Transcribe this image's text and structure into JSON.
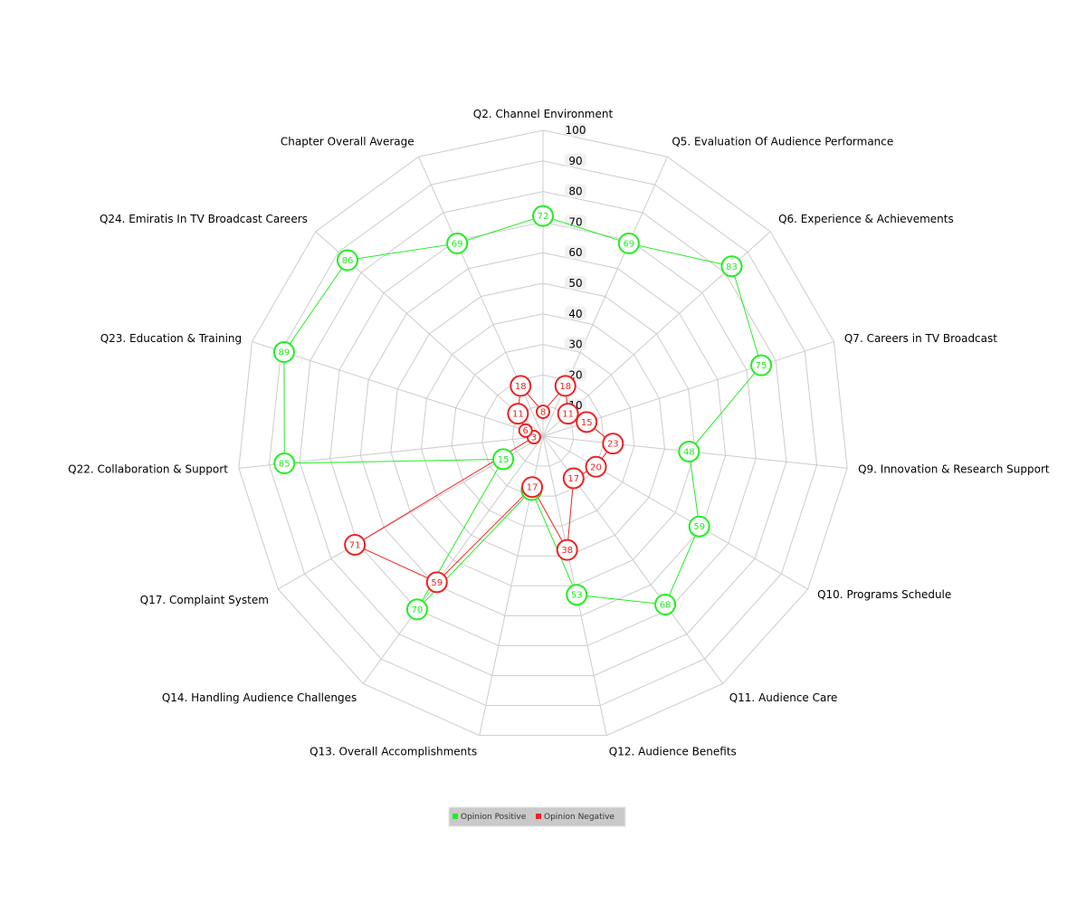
{
  "chart_data": {
    "type": "radar",
    "title": "",
    "categories": [
      "Q2. Channel Environment",
      "Q5. Evaluation Of Audience Performance",
      "Q6. Experience & Achievements",
      "Q7. Careers in TV Broadcast",
      "Q9. Innovation & Research Support",
      "Q10. Programs Schedule",
      "Q11. Audience Care",
      "Q12. Audience Benefits",
      "Q13. Overall Accomplishments",
      "Q14. Handling Audience Challenges",
      "Q17. Complaint System",
      "Q22. Collaboration & Support",
      "Q23. Education & Training",
      "Q24. Emiratis In TV Broadcast Careers",
      "Chapter Overall Average"
    ],
    "rlim": [
      0,
      100
    ],
    "ticks": [
      10,
      20,
      30,
      40,
      50,
      60,
      70,
      80,
      90,
      100
    ],
    "tick_labels": [
      "10",
      "20",
      "30",
      "40",
      "50",
      "60",
      "70",
      "80",
      "90",
      "100"
    ],
    "grid": true,
    "legend_position": "bottom-center",
    "series": [
      {
        "name": "Opinion Positive",
        "color": "#22ee22",
        "values": [
          72,
          69,
          83,
          75,
          48,
          59,
          68,
          53,
          18,
          70,
          15,
          85,
          89,
          86,
          69
        ],
        "labels": [
          "72",
          "69",
          "83",
          "75",
          "48",
          "59",
          "68",
          "53",
          "18",
          "70",
          "15",
          "85",
          "89",
          "86",
          "69"
        ]
      },
      {
        "name": "Opinion Negative",
        "color": "#ee2222",
        "values": [
          8,
          18,
          11,
          15,
          23,
          20,
          17,
          38,
          17,
          59,
          71,
          3,
          6,
          11,
          18
        ],
        "labels": [
          "8",
          "18",
          "11",
          "15",
          "23",
          "20",
          "17",
          "38",
          "17",
          "59",
          "71",
          "3",
          "6",
          "11",
          "18"
        ]
      }
    ]
  }
}
